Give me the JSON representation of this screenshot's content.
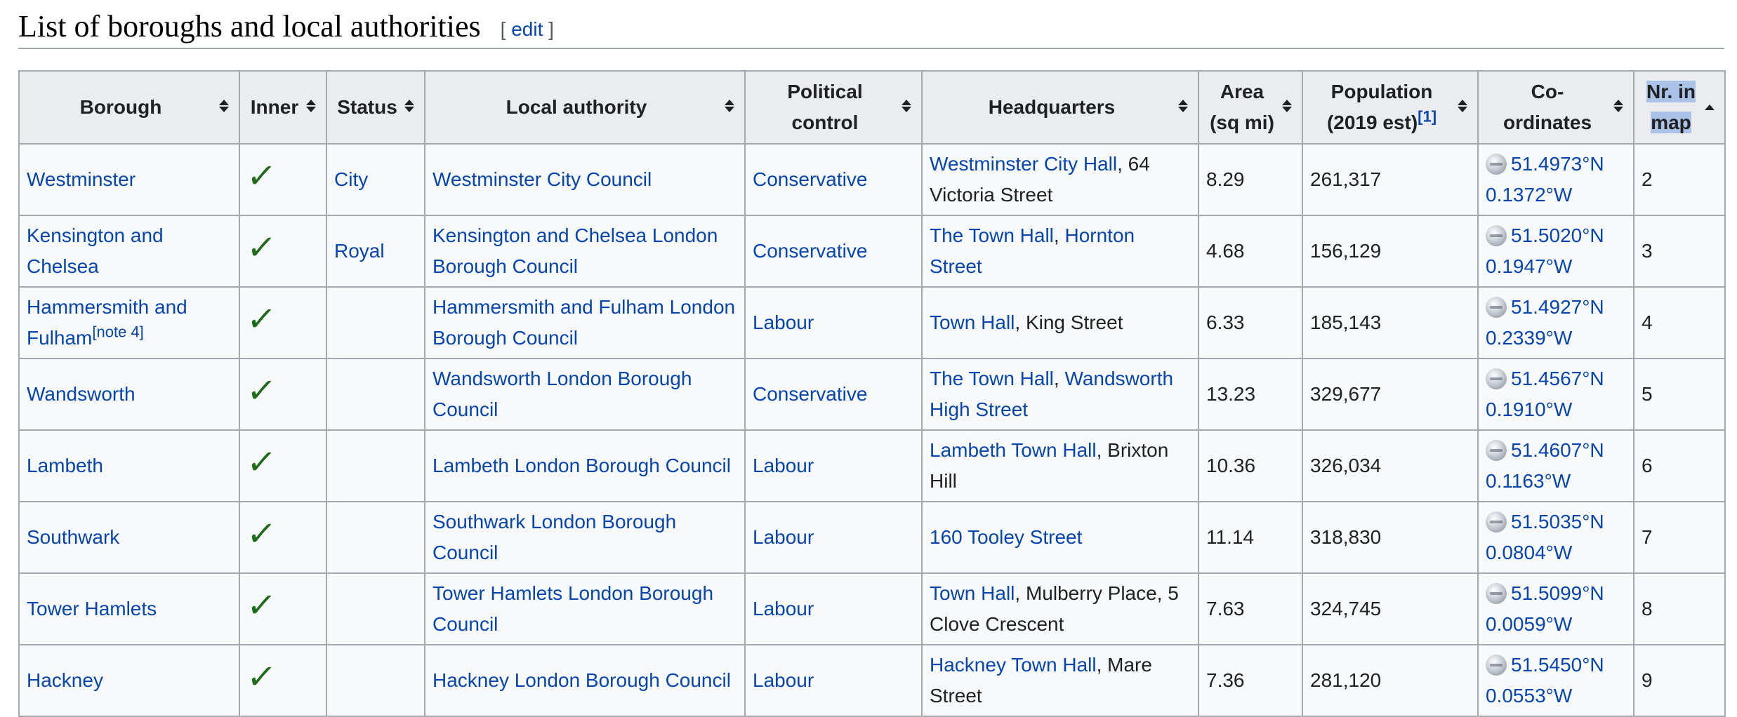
{
  "section": {
    "title": "List of boroughs and local authorities",
    "edit_open": "[ ",
    "edit_label": "edit",
    "edit_close": " ]"
  },
  "columns": {
    "borough": "Borough",
    "inner": "Inner",
    "status": "Status",
    "local_authority": "Local authority",
    "political_l1": "Political",
    "political_l2": "control",
    "hq": "Headquarters",
    "area_l1": "Area",
    "area_l2": "(sq mi)",
    "pop_l1": "Population",
    "pop_l2": "(2019 est)",
    "pop_ref": "[1]",
    "coords_l1": "Co-",
    "coords_l2": "ordinates",
    "nr_l1": "Nr. in",
    "nr_l2": "map"
  },
  "icons": {
    "sort": "sort-both-icon",
    "sort_active": "sort-ascending-icon",
    "inner": "checkmark-icon",
    "coords": "globe-icon"
  },
  "colors": {
    "link": "#0645ad",
    "tick": "#1e6b1e",
    "header_bg": "#eaecf0",
    "cell_bg": "#f8f9fa",
    "border": "#a2a9b1",
    "selection": "#a9c2e6"
  },
  "rows": [
    {
      "borough_l1": "Westminster",
      "borough_l2": "",
      "borough_note": "",
      "inner": "✓",
      "status": "City",
      "la_l1": "Westminster City Council",
      "la_l2": "",
      "control": "Conservative",
      "hq_link1": "Westminster City Hall",
      "hq_sep1": ", 64",
      "hq_link2": "",
      "hq_line2": "Victoria Street",
      "area": "8.29",
      "population": "261,317",
      "lat": "51.4973°N",
      "lon": "0.1372°W",
      "nr": "2"
    },
    {
      "borough_l1": "Kensington and",
      "borough_l2": "Chelsea",
      "borough_note": "",
      "inner": "✓",
      "status": "Royal",
      "la_l1": "Kensington and Chelsea London",
      "la_l2": "Borough Council",
      "control": "Conservative",
      "hq_link1": "The Town Hall",
      "hq_sep1": ", ",
      "hq_link2": "Hornton",
      "hq_line2": "Street",
      "area": "4.68",
      "population": "156,129",
      "lat": "51.5020°N",
      "lon": "0.1947°W",
      "nr": "3"
    },
    {
      "borough_l1": "Hammersmith and",
      "borough_l2": "Fulham",
      "borough_note": "[note 4]",
      "inner": "✓",
      "status": "",
      "la_l1": "Hammersmith and Fulham London",
      "la_l2": "Borough Council",
      "control": "Labour",
      "hq_link1": "Town Hall",
      "hq_sep1": ", King Street",
      "hq_link2": "",
      "hq_line2": "",
      "area": "6.33",
      "population": "185,143",
      "lat": "51.4927°N",
      "lon": "0.2339°W",
      "nr": "4"
    },
    {
      "borough_l1": "Wandsworth",
      "borough_l2": "",
      "borough_note": "",
      "inner": "✓",
      "status": "",
      "la_l1": "Wandsworth London Borough",
      "la_l2": "Council",
      "control": "Conservative",
      "hq_link1": "The Town Hall",
      "hq_sep1": ", ",
      "hq_link2": "Wandsworth",
      "hq_line2": "High Street",
      "area": "13.23",
      "population": "329,677",
      "lat": "51.4567°N",
      "lon": "0.1910°W",
      "nr": "5"
    },
    {
      "borough_l1": "Lambeth",
      "borough_l2": "",
      "borough_note": "",
      "inner": "✓",
      "status": "",
      "la_l1": "Lambeth London Borough Council",
      "la_l2": "",
      "control": "Labour",
      "hq_link1": "Lambeth Town Hall",
      "hq_sep1": ", Brixton",
      "hq_link2": "",
      "hq_line2": "Hill",
      "area": "10.36",
      "population": "326,034",
      "lat": "51.4607°N",
      "lon": "0.1163°W",
      "nr": "6"
    },
    {
      "borough_l1": "Southwark",
      "borough_l2": "",
      "borough_note": "",
      "inner": "✓",
      "status": "",
      "la_l1": "Southwark London Borough",
      "la_l2": "Council",
      "control": "Labour",
      "hq_link1": "160 Tooley Street",
      "hq_sep1": "",
      "hq_link2": "",
      "hq_line2": "",
      "area": "11.14",
      "population": "318,830",
      "lat": "51.5035°N",
      "lon": "0.0804°W",
      "nr": "7"
    },
    {
      "borough_l1": "Tower Hamlets",
      "borough_l2": "",
      "borough_note": "",
      "inner": "✓",
      "status": "",
      "la_l1": "Tower Hamlets London Borough",
      "la_l2": "Council",
      "control": "Labour",
      "hq_link1": "Town Hall",
      "hq_sep1": ", Mulberry Place, 5",
      "hq_link2": "",
      "hq_line2": "Clove Crescent",
      "area": "7.63",
      "population": "324,745",
      "lat": "51.5099°N",
      "lon": "0.0059°W",
      "nr": "8"
    },
    {
      "borough_l1": "Hackney",
      "borough_l2": "",
      "borough_note": "",
      "inner": "✓",
      "status": "",
      "la_l1": "Hackney London Borough Council",
      "la_l2": "",
      "control": "Labour",
      "hq_link1": "Hackney Town Hall",
      "hq_sep1": ", Mare",
      "hq_link2": "",
      "hq_line2": "Street",
      "area": "7.36",
      "population": "281,120",
      "lat": "51.5450°N",
      "lon": "0.0553°W",
      "nr": "9"
    }
  ]
}
